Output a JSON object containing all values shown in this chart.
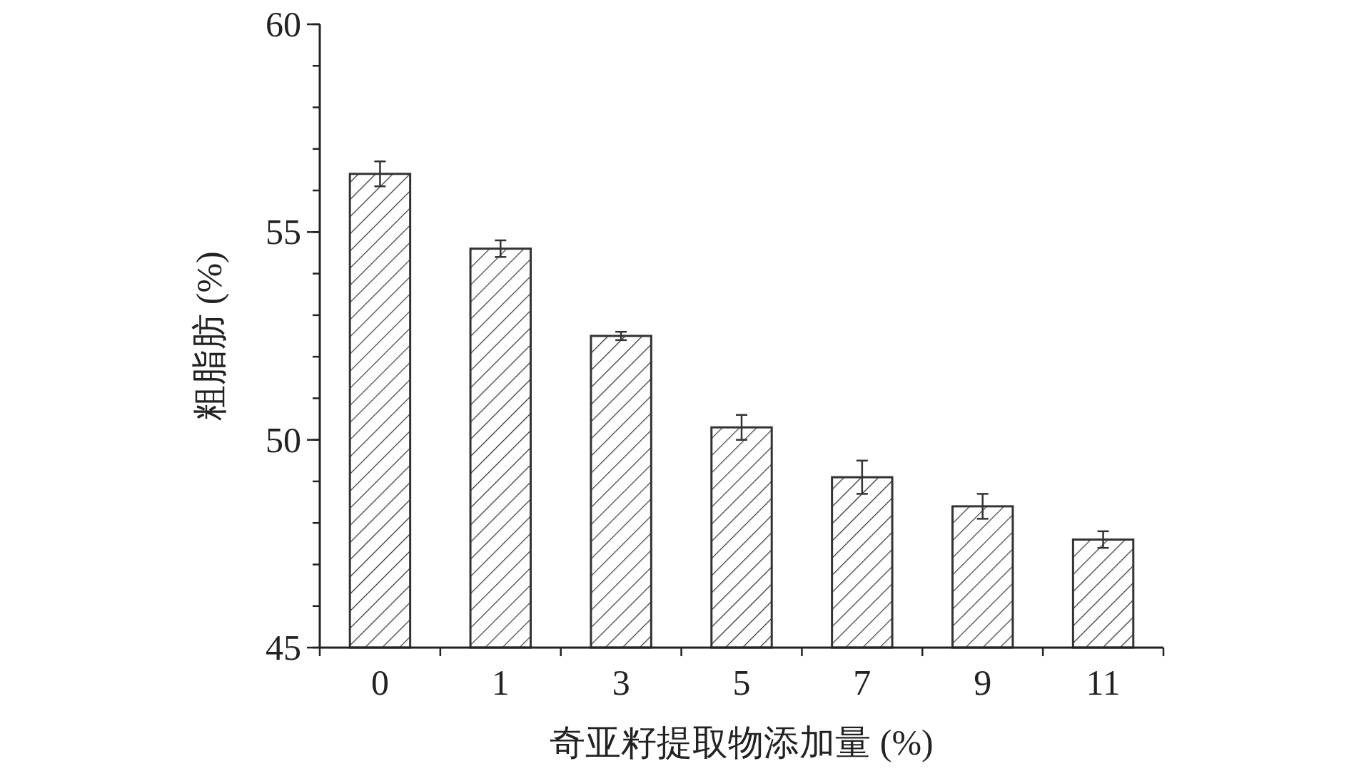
{
  "chart_data": {
    "type": "bar",
    "xlabel": "奇亚籽提取物添加量 (%)",
    "ylabel": "粗脂肪 (%)",
    "categories": [
      "0",
      "1",
      "3",
      "5",
      "7",
      "9",
      "11"
    ],
    "series": [
      {
        "color": "#333333",
        "values": [
          56.4,
          54.6,
          52.5,
          50.3,
          49.1,
          48.4,
          47.6
        ],
        "errors": [
          0.3,
          0.2,
          0.1,
          0.3,
          0.4,
          0.3,
          0.2
        ]
      }
    ],
    "ylim": [
      45,
      60
    ],
    "yticks": [
      45,
      50,
      55,
      60
    ]
  }
}
